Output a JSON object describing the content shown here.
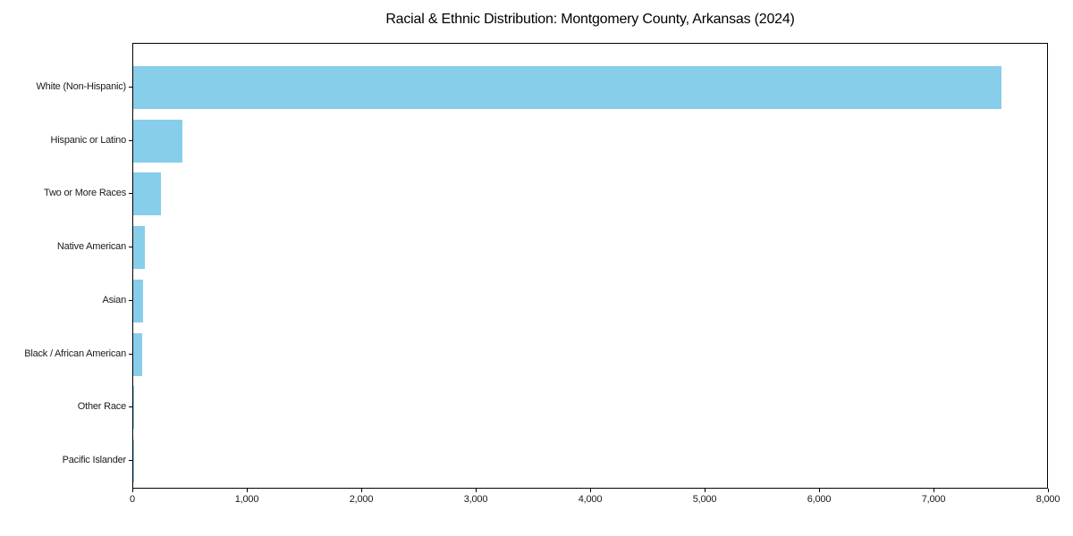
{
  "chart_data": {
    "type": "bar",
    "orientation": "horizontal",
    "title": "Racial & Ethnic Distribution: Montgomery County, Arkansas (2024)",
    "categories": [
      "White (Non-Hispanic)",
      "Hispanic or Latino",
      "Two or More Races",
      "Native American",
      "Asian",
      "Black / African American",
      "Other Race",
      "Pacific Islander"
    ],
    "values": [
      7600,
      430,
      240,
      100,
      90,
      80,
      8,
      3
    ],
    "xlabel": "",
    "ylabel": "",
    "xlim": [
      0,
      8000
    ],
    "xticks": [
      0,
      1000,
      2000,
      3000,
      4000,
      5000,
      6000,
      7000,
      8000
    ],
    "xtick_labels": [
      "0",
      "1,000",
      "2,000",
      "3,000",
      "4,000",
      "5,000",
      "6,000",
      "7,000",
      "8,000"
    ],
    "grid": false,
    "legend_position": "none",
    "bar_color": "#87CEEB",
    "axis_color": "#000000",
    "text_color": "#1a1a1a",
    "background_color": "#ffffff"
  }
}
